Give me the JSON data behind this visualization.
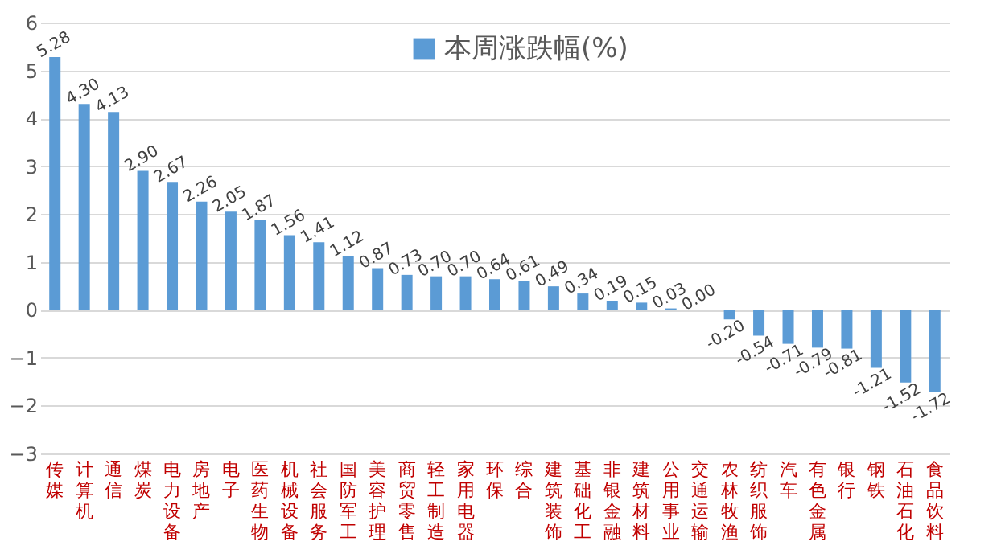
{
  "chart_data": {
    "type": "bar",
    "categories": [
      "传媒",
      "计算机",
      "通信",
      "煤炭",
      "电力设备",
      "房地产",
      "电子",
      "医药生物",
      "机械设备",
      "社会服务",
      "国防军工",
      "美容护理",
      "商贸零售",
      "轻工制造",
      "家用电器",
      "环保",
      "综合",
      "建筑装饰",
      "基础化工",
      "非银金融",
      "建筑材料",
      "公用事业",
      "交通运输",
      "农林牧渔",
      "纺织服饰",
      "汽车",
      "有色金属",
      "银行",
      "钢铁",
      "石油石化",
      "食品饮料"
    ],
    "series": [
      {
        "name": "本周涨跌幅(%)",
        "color": "#5b9bd5",
        "values": [
          5.28,
          4.3,
          4.13,
          2.9,
          2.67,
          2.26,
          2.05,
          1.87,
          1.56,
          1.41,
          1.12,
          0.87,
          0.73,
          0.7,
          0.7,
          0.64,
          0.61,
          0.49,
          0.34,
          0.19,
          0.15,
          0.03,
          0.0,
          -0.2,
          -0.54,
          -0.71,
          -0.79,
          -0.81,
          -1.21,
          -1.52,
          -1.72
        ],
        "value_labels": [
          "5.28",
          "4.30",
          "4.13",
          "2.90",
          "2.67",
          "2.26",
          "2.05",
          "1.87",
          "1.56",
          "1.41",
          "1.12",
          "0.87",
          "0.73",
          "0.70",
          "0.70",
          "0.64",
          "0.61",
          "0.49",
          "0.34",
          "0.19",
          "0.15",
          "0.03",
          "0.00",
          "-0.20",
          "-0.54",
          "-0.71",
          "-0.79",
          "-0.81",
          "-1.21",
          "-1.52",
          "-1.72"
        ]
      }
    ],
    "ylim": [
      -3,
      6
    ],
    "yticks": [
      -3,
      -2,
      -1,
      0,
      1,
      2,
      3,
      4,
      5,
      6
    ],
    "grid": "y",
    "legend": "top"
  }
}
